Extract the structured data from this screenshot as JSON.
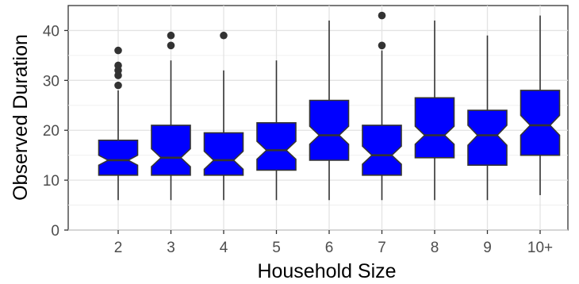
{
  "chart_data": {
    "type": "boxplot",
    "notched": true,
    "xlabel": "Household Size",
    "ylabel": "Observed Duration",
    "ylim": [
      0,
      45
    ],
    "yticks": [
      0,
      10,
      20,
      30,
      40
    ],
    "grid": true,
    "legend": "none",
    "fill_color": "#0000ff",
    "line_color": "#333333",
    "categories": [
      "2",
      "3",
      "4",
      "5",
      "6",
      "7",
      "8",
      "9",
      "10+"
    ],
    "boxes": [
      {
        "category": "2",
        "whisker_low": 6,
        "q1": 11,
        "median": 14,
        "q3": 18,
        "whisker_high": 28,
        "notch": [
          13,
          15
        ],
        "outliers": [
          29,
          31,
          32,
          33,
          36
        ]
      },
      {
        "category": "3",
        "whisker_low": 6,
        "q1": 11,
        "median": 14.5,
        "q3": 21,
        "whisker_high": 34,
        "notch": [
          12.7,
          16.3
        ],
        "outliers": [
          37,
          39
        ]
      },
      {
        "category": "4",
        "whisker_low": 6,
        "q1": 11,
        "median": 14,
        "q3": 19.5,
        "whisker_high": 32,
        "notch": [
          12.2,
          15.8
        ],
        "outliers": [
          39
        ]
      },
      {
        "category": "5",
        "whisker_low": 6,
        "q1": 12,
        "median": 16,
        "q3": 21.5,
        "whisker_high": 34,
        "notch": [
          14.2,
          17.8
        ],
        "outliers": []
      },
      {
        "category": "6",
        "whisker_low": 6,
        "q1": 14,
        "median": 19,
        "q3": 26,
        "whisker_high": 42,
        "notch": [
          17.2,
          20.8
        ],
        "outliers": []
      },
      {
        "category": "7",
        "whisker_low": 6,
        "q1": 11,
        "median": 15,
        "q3": 21,
        "whisker_high": 36,
        "notch": [
          13.2,
          16.8
        ],
        "outliers": [
          37,
          43
        ]
      },
      {
        "category": "8",
        "whisker_low": 6,
        "q1": 14.5,
        "median": 19,
        "q3": 26.5,
        "whisker_high": 42,
        "notch": [
          17.2,
          20.8
        ],
        "outliers": []
      },
      {
        "category": "9",
        "whisker_low": 6,
        "q1": 13,
        "median": 19,
        "q3": 24,
        "whisker_high": 39,
        "notch": [
          17,
          21
        ],
        "outliers": []
      },
      {
        "category": "10+",
        "whisker_low": 7,
        "q1": 15,
        "median": 21,
        "q3": 28,
        "whisker_high": 43,
        "notch": [
          19,
          23
        ],
        "outliers": []
      }
    ]
  }
}
